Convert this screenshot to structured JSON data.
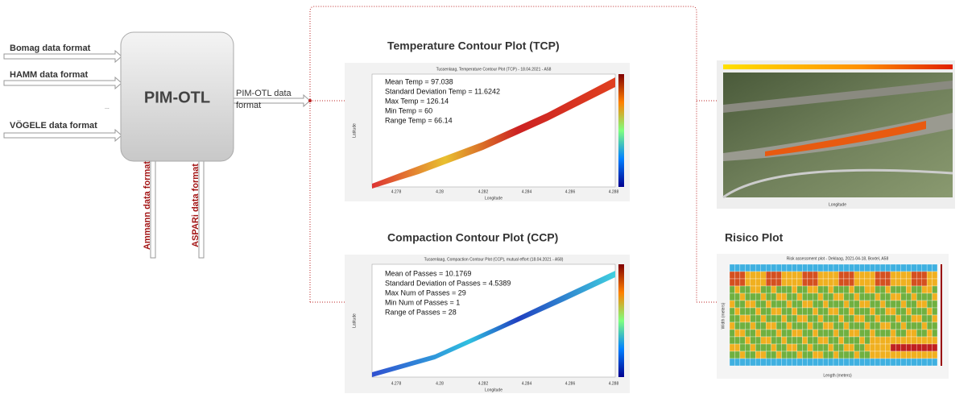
{
  "inputs": [
    "Bomag data format",
    "HAMM data format",
    "...",
    "VÖGELE data format"
  ],
  "bottom_inputs": [
    "Ammann data format",
    "ASPARi data format"
  ],
  "processor": "PIM-OTL",
  "output": [
    "PIM-OTL data",
    "format"
  ],
  "tcp": {
    "heading": "Temperature Contour Plot (TCP)",
    "title": "Tussenlaag, Temperature Contour Plot (TCP) - 18.04.2021 - A58",
    "stats": [
      "Mean Temp = 97.038",
      "Standard Deviation Temp = 11.6242",
      "Max Temp = 126.14",
      "Min Temp = 60",
      "Range Temp = 66.14"
    ],
    "xlabel": "Longitude",
    "ylabel": "Latitude",
    "xticks": [
      "4.278",
      "4.28",
      "4.282",
      "4.284",
      "4.286",
      "4.288"
    ]
  },
  "ccp": {
    "heading": "Compaction Contour Plot (CCP)",
    "title": "Tussenlaag, Compaction Contour Plot (CCP), mutual effort (18.04.2021 - A58)",
    "stats": [
      "Mean of Passes = 10.1769",
      "Standard Deviation of Passes = 4.5389",
      "Max Num of Passes = 29",
      "Min Num of Passes = 1",
      "Range of Passes = 28"
    ],
    "xlabel": "Longitude",
    "ylabel": "Latitude",
    "xticks": [
      "4.278",
      "4.28",
      "4.282",
      "4.284",
      "4.286",
      "4.288"
    ]
  },
  "risico": {
    "heading": "Risico Plot",
    "title": "Risk assessment plot - Deklaag, 2021-04-18, Boxtel, A58",
    "xlabel": "Length (meters)",
    "ylabel": "Width (meters)"
  },
  "map": {
    "xlabel": "Longitude"
  }
}
